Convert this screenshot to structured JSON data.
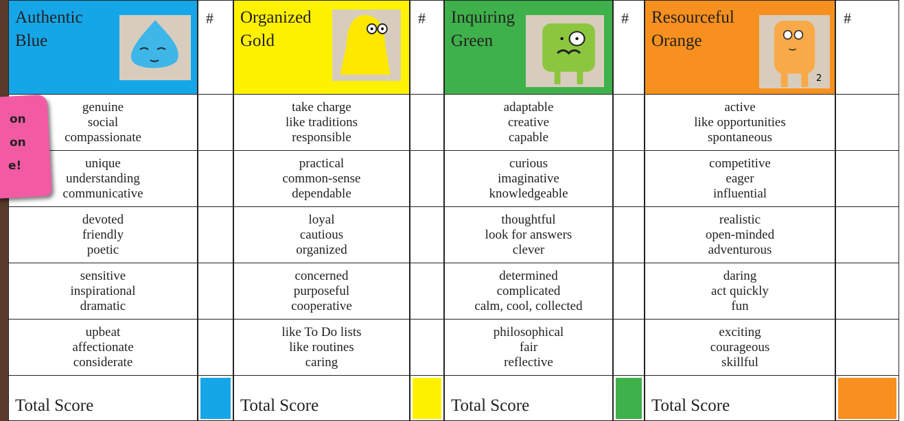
{
  "columns": [
    {
      "title_lines": [
        "Authentic",
        "Blue"
      ],
      "hash": "#",
      "color": "#15a6e8",
      "total": "Total Score"
    },
    {
      "title_lines": [
        "Organized",
        "Gold"
      ],
      "hash": "#",
      "color": "#fff200",
      "total": "Total Score"
    },
    {
      "title_lines": [
        "Inquiring",
        "Green"
      ],
      "hash": "#",
      "color": "#3eb14b",
      "total": "Total Score"
    },
    {
      "title_lines": [
        "Resourceful",
        "Orange"
      ],
      "hash": "#",
      "color": "#f7901e",
      "total": "Total Score",
      "image_label": "2"
    }
  ],
  "rows": [
    [
      [
        "genuine",
        "social",
        "compassionate"
      ],
      [
        "take charge",
        "like traditions",
        "responsible"
      ],
      [
        "adaptable",
        "creative",
        "capable"
      ],
      [
        "active",
        "like opportunities",
        "spontaneous"
      ]
    ],
    [
      [
        "unique",
        "understanding",
        "communicative"
      ],
      [
        "practical",
        "common-sense",
        "dependable"
      ],
      [
        "curious",
        "imaginative",
        "knowledgeable"
      ],
      [
        "competitive",
        "eager",
        "influential"
      ]
    ],
    [
      [
        "devoted",
        "friendly",
        "poetic"
      ],
      [
        "loyal",
        "cautious",
        "organized"
      ],
      [
        "thoughtful",
        "look for answers",
        "clever"
      ],
      [
        "realistic",
        "open-minded",
        "adventurous"
      ]
    ],
    [
      [
        "sensitive",
        "inspirational",
        "dramatic"
      ],
      [
        "concerned",
        "purposeful",
        "cooperative"
      ],
      [
        "determined",
        "complicated",
        "calm, cool, collected"
      ],
      [
        "daring",
        "act quickly",
        "fun"
      ]
    ],
    [
      [
        "upbeat",
        "affectionate",
        "considerate"
      ],
      [
        "like To Do lists",
        "like routines",
        "caring"
      ],
      [
        "philosophical",
        "fair",
        "reflective"
      ],
      [
        "exciting",
        "courageous",
        "skillful"
      ]
    ]
  ],
  "note": {
    "lines": [
      "on",
      "on",
      "e!"
    ]
  }
}
